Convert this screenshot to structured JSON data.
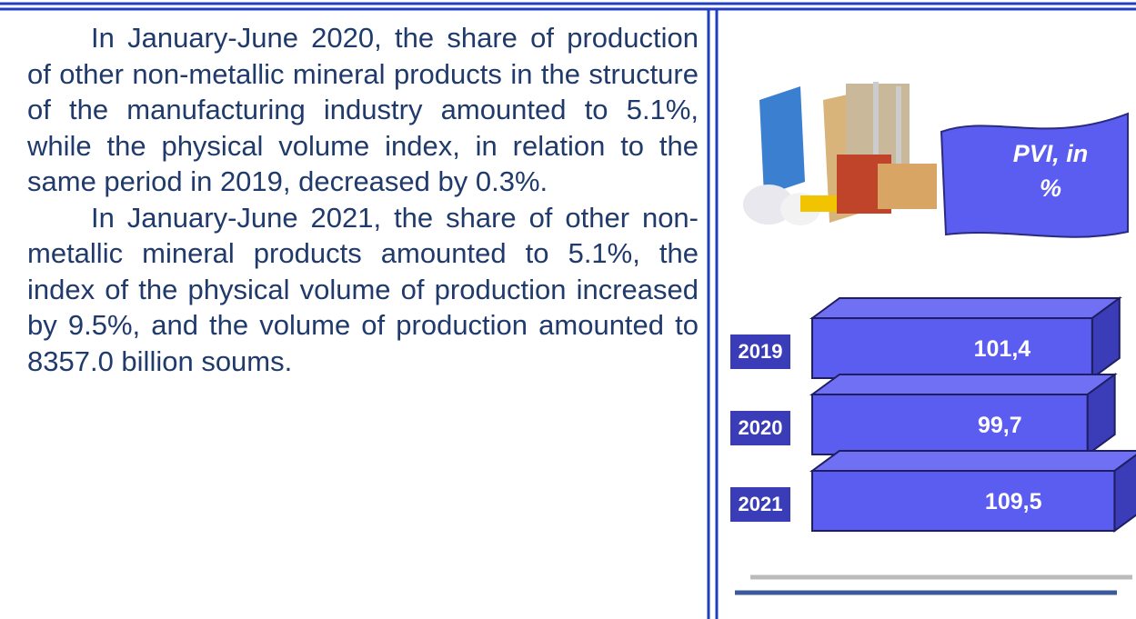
{
  "paragraphs": [
    "In January-June 2020, the share of production of other non-metallic mineral products in the structure of the manufacturing industry amounted to 5.1%, while the physical volume index, in relation to the same period in 2019, decreased by 0.3%.",
    "In January-June 2021, the share of other non-metallic mineral products amounted to 5.1%, the index of the physical volume of production increased by 9.5%, and the volume of production amounted to 8357.0 billion soums."
  ],
  "chart_data": {
    "type": "bar",
    "orientation": "horizontal",
    "title": "PVI, in %",
    "categories": [
      "2019",
      "2020",
      "2021"
    ],
    "values": [
      101.4,
      99.7,
      109.5
    ],
    "value_labels": [
      "101,4",
      "99,7",
      "109,5"
    ],
    "color": "#5b5cf0",
    "xlim": [
      0,
      112
    ]
  }
}
